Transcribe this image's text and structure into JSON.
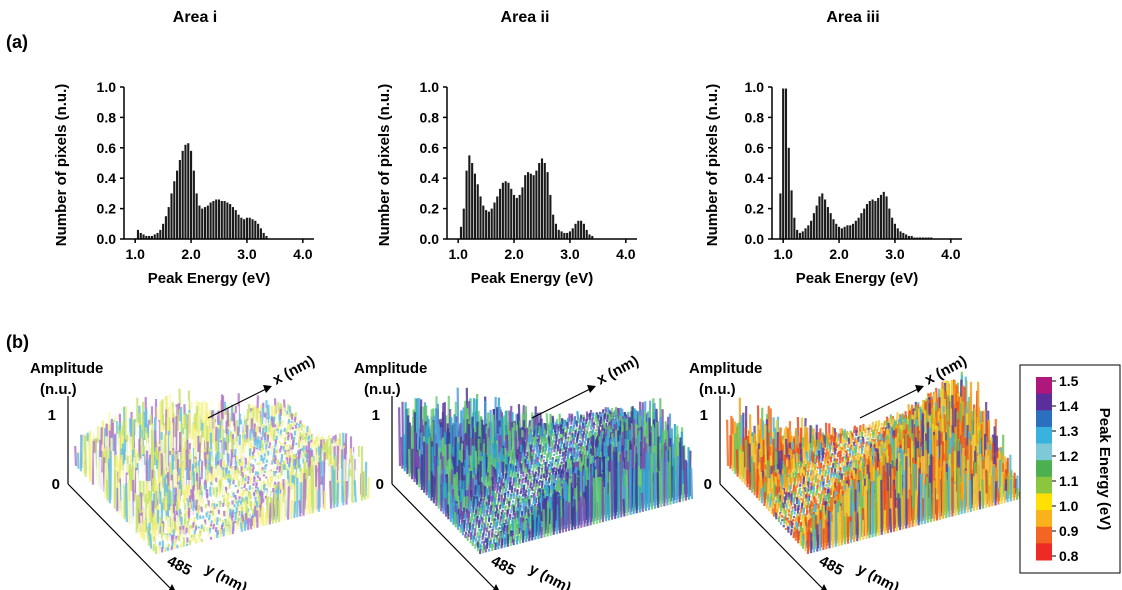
{
  "panels": {
    "a_label": "(a)",
    "b_label": "(b)"
  },
  "chart_data": [
    {
      "type": "bar",
      "title": "Area i",
      "xlabel": "Peak Energy (eV)",
      "ylabel": "Number of pixels (n.u.)",
      "xlim": [
        0.8,
        4.2
      ],
      "ylim": [
        0,
        1.0
      ],
      "xticks": [
        "1.0",
        "2.0",
        "3.0",
        "4.0"
      ],
      "yticks": [
        "0.0",
        "0.2",
        "0.4",
        "0.6",
        "0.8",
        "1.0"
      ],
      "bin_width": 0.05,
      "x": [
        1.05,
        1.1,
        1.15,
        1.2,
        1.25,
        1.3,
        1.35,
        1.4,
        1.45,
        1.5,
        1.55,
        1.6,
        1.65,
        1.7,
        1.75,
        1.8,
        1.85,
        1.9,
        1.95,
        2.0,
        2.05,
        2.1,
        2.15,
        2.2,
        2.25,
        2.3,
        2.35,
        2.4,
        2.45,
        2.5,
        2.55,
        2.6,
        2.65,
        2.7,
        2.75,
        2.8,
        2.85,
        2.9,
        2.95,
        3.0,
        3.05,
        3.1,
        3.15,
        3.2,
        3.25,
        3.3,
        3.35
      ],
      "values": [
        0.06,
        0.04,
        0.03,
        0.02,
        0.02,
        0.02,
        0.03,
        0.04,
        0.06,
        0.1,
        0.15,
        0.21,
        0.3,
        0.38,
        0.45,
        0.52,
        0.58,
        0.62,
        0.63,
        0.58,
        0.45,
        0.3,
        0.22,
        0.2,
        0.21,
        0.22,
        0.24,
        0.25,
        0.26,
        0.26,
        0.25,
        0.25,
        0.24,
        0.23,
        0.21,
        0.19,
        0.16,
        0.14,
        0.13,
        0.14,
        0.14,
        0.13,
        0.12,
        0.1,
        0.07,
        0.04,
        0.02
      ]
    },
    {
      "type": "bar",
      "title": "Area ii",
      "xlabel": "Peak Energy (eV)",
      "ylabel": "Number of pixels (n.u.)",
      "xlim": [
        0.8,
        4.2
      ],
      "ylim": [
        0,
        1.0
      ],
      "xticks": [
        "1.0",
        "2.0",
        "3.0",
        "4.0"
      ],
      "yticks": [
        "0.0",
        "0.2",
        "0.4",
        "0.6",
        "0.8",
        "1.0"
      ],
      "bin_width": 0.05,
      "x": [
        1.05,
        1.1,
        1.15,
        1.2,
        1.25,
        1.3,
        1.35,
        1.4,
        1.45,
        1.5,
        1.55,
        1.6,
        1.65,
        1.7,
        1.75,
        1.8,
        1.85,
        1.9,
        1.95,
        2.0,
        2.05,
        2.1,
        2.15,
        2.2,
        2.25,
        2.3,
        2.35,
        2.4,
        2.45,
        2.5,
        2.55,
        2.6,
        2.65,
        2.7,
        2.75,
        2.8,
        2.85,
        2.9,
        2.95,
        3.0,
        3.05,
        3.1,
        3.15,
        3.2,
        3.25,
        3.3,
        3.35,
        3.4
      ],
      "values": [
        0.08,
        0.2,
        0.45,
        0.55,
        0.5,
        0.43,
        0.36,
        0.28,
        0.22,
        0.19,
        0.18,
        0.2,
        0.24,
        0.28,
        0.33,
        0.37,
        0.38,
        0.37,
        0.33,
        0.29,
        0.27,
        0.29,
        0.34,
        0.42,
        0.44,
        0.43,
        0.42,
        0.45,
        0.5,
        0.53,
        0.5,
        0.44,
        0.29,
        0.16,
        0.1,
        0.06,
        0.05,
        0.04,
        0.04,
        0.05,
        0.07,
        0.1,
        0.12,
        0.12,
        0.1,
        0.06,
        0.03,
        0.02
      ]
    },
    {
      "type": "bar",
      "title": "Area iii",
      "xlabel": "Peak Energy (eV)",
      "ylabel": "Number of pixels (n.u.)",
      "xlim": [
        0.8,
        4.2
      ],
      "ylim": [
        0,
        1.0
      ],
      "xticks": [
        "1.0",
        "2.0",
        "3.0",
        "4.0"
      ],
      "yticks": [
        "0.0",
        "0.2",
        "0.4",
        "0.6",
        "0.8",
        "1.0"
      ],
      "bin_width": 0.05,
      "x": [
        0.95,
        1.0,
        1.05,
        1.1,
        1.15,
        1.2,
        1.25,
        1.3,
        1.35,
        1.4,
        1.45,
        1.5,
        1.55,
        1.6,
        1.65,
        1.7,
        1.75,
        1.8,
        1.85,
        1.9,
        1.95,
        2.0,
        2.05,
        2.1,
        2.15,
        2.2,
        2.25,
        2.3,
        2.35,
        2.4,
        2.45,
        2.5,
        2.55,
        2.6,
        2.65,
        2.7,
        2.75,
        2.8,
        2.85,
        2.9,
        2.95,
        3.0,
        3.05,
        3.1,
        3.15,
        3.2,
        3.25,
        3.3,
        3.35,
        3.4,
        3.45,
        3.5,
        3.55,
        3.6,
        3.65
      ],
      "values": [
        0.3,
        0.99,
        0.99,
        0.6,
        0.32,
        0.14,
        0.06,
        0.04,
        0.05,
        0.07,
        0.09,
        0.12,
        0.17,
        0.22,
        0.28,
        0.3,
        0.26,
        0.21,
        0.17,
        0.13,
        0.1,
        0.08,
        0.07,
        0.08,
        0.09,
        0.09,
        0.1,
        0.12,
        0.14,
        0.17,
        0.2,
        0.23,
        0.25,
        0.26,
        0.25,
        0.27,
        0.29,
        0.31,
        0.28,
        0.2,
        0.14,
        0.1,
        0.07,
        0.05,
        0.04,
        0.03,
        0.02,
        0.02,
        0.01,
        0.01,
        0.01,
        0.01,
        0.01,
        0.01,
        0.01
      ]
    },
    {
      "type": "surface3d",
      "panels": [
        {
          "id": "area-i-surface",
          "palette": [
            "#f5f07a",
            "#c8e46e",
            "#f8f8c0",
            "#b07acc",
            "#6ac2e6",
            "#ffffff"
          ],
          "peak": 0.55
        },
        {
          "id": "area-ii-surface",
          "palette": [
            "#4c3e96",
            "#28a6c8",
            "#5fc36a",
            "#7b4fb0",
            "#4fa0d8",
            "#6dd07a",
            "#3b3b9a"
          ],
          "peak": 0.75
        },
        {
          "id": "area-iii-surface",
          "palette": [
            "#f3a317",
            "#f06d1c",
            "#e9d32a",
            "#6fc35a",
            "#4fb8d2",
            "#f5c542",
            "#ea4a1e",
            "#5e3f9a"
          ],
          "peak": 0.8
        }
      ],
      "zlabel": "Amplitude",
      "zunit": "(n.u.)",
      "ztick_top": "1",
      "ztick_bottom": "0",
      "xlabel": "x (nm)",
      "ylabel": "y (nm)",
      "ytick": "485"
    }
  ],
  "colorbar": {
    "title": "Peak Energy (eV)",
    "ticks": [
      "1.5",
      "1.4",
      "1.3",
      "1.2",
      "1.1",
      "1.0",
      "0.9",
      "0.8"
    ],
    "colors": [
      "#b0177c",
      "#5b2f9b",
      "#2b6fbf",
      "#39b2e0",
      "#7ec8d8",
      "#4caf50",
      "#8cc63f",
      "#ffe000",
      "#f9b21b",
      "#f26522",
      "#ee2a24"
    ]
  }
}
